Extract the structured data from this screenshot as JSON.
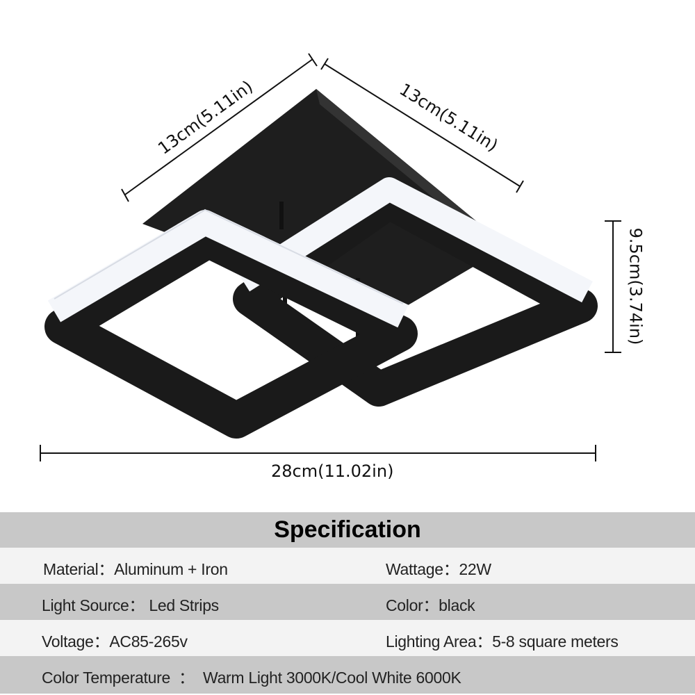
{
  "dimensions": {
    "top_left": "13cm(5.11in)",
    "top_right": "13cm(5.11in)",
    "height": "9.5cm(3.74in)",
    "width": "28cm(11.02in)"
  },
  "product": {
    "color": "#1a1a1a",
    "light_color": "#f4f6fa"
  },
  "spec": {
    "title": "Specification",
    "rows": [
      {
        "left": "Material：Aluminum + Iron",
        "right": "Wattage：22W"
      },
      {
        "left": "Light Source：  Led Strips",
        "right": "Color：black"
      },
      {
        "left": "Voltage：AC85-265v",
        "right": "Lighting Area：5-8 square meters"
      },
      {
        "left": "Color Temperature  ：  Warm Light 3000K/Cool White 6000K",
        "right": ""
      }
    ]
  }
}
